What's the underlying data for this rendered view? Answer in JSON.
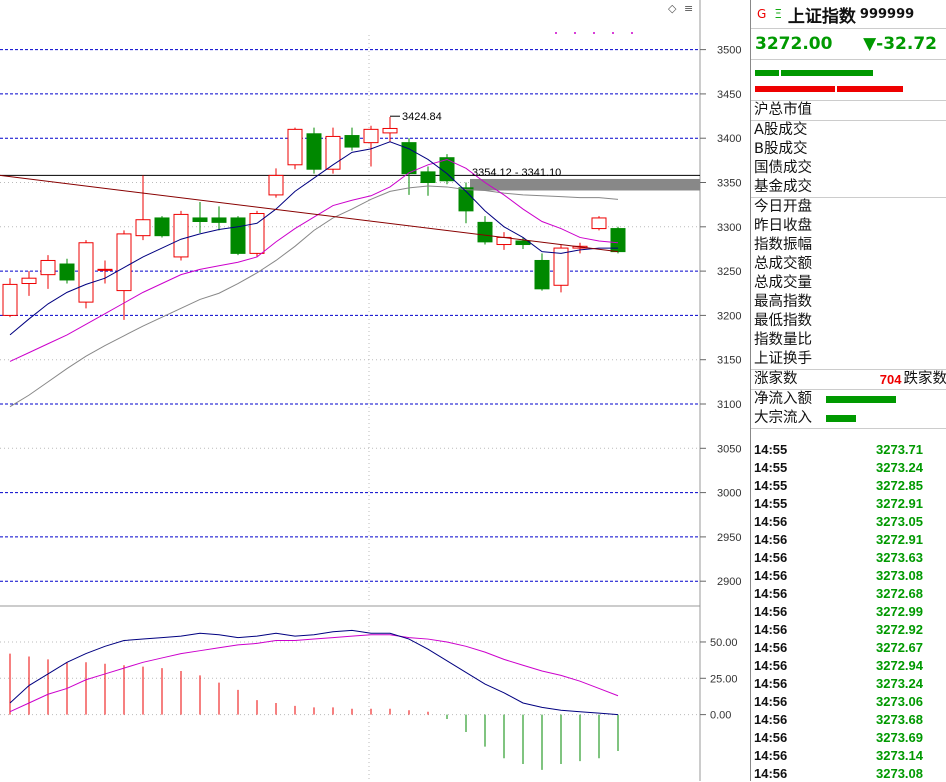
{
  "chart_data": [
    {
      "type": "candlestick",
      "yticks": [
        2900,
        2950,
        3000,
        3050,
        3100,
        3150,
        3200,
        3250,
        3300,
        3350,
        3400,
        3450,
        3500
      ],
      "ylim": [
        2872,
        3556
      ],
      "candles": [
        {
          "o": 3200,
          "c": 3235,
          "h": 3242,
          "l": 3198
        },
        {
          "o": 3236,
          "c": 3242,
          "h": 3250,
          "l": 3222
        },
        {
          "o": 3246,
          "c": 3262,
          "h": 3268,
          "l": 3230
        },
        {
          "o": 3258,
          "c": 3240,
          "h": 3264,
          "l": 3236
        },
        {
          "o": 3215,
          "c": 3282,
          "h": 3285,
          "l": 3208
        },
        {
          "o": 3252,
          "c": 3252,
          "h": 3262,
          "l": 3236
        },
        {
          "o": 3228,
          "c": 3292,
          "h": 3296,
          "l": 3195
        },
        {
          "o": 3290,
          "c": 3308,
          "h": 3358,
          "l": 3285
        },
        {
          "o": 3310,
          "c": 3290,
          "h": 3312,
          "l": 3288
        },
        {
          "o": 3266,
          "c": 3314,
          "h": 3318,
          "l": 3262
        },
        {
          "o": 3310,
          "c": 3306,
          "h": 3328,
          "l": 3293
        },
        {
          "o": 3310,
          "c": 3305,
          "h": 3323,
          "l": 3296
        },
        {
          "o": 3310,
          "c": 3270,
          "h": 3312,
          "l": 3268
        },
        {
          "o": 3270,
          "c": 3315,
          "h": 3318,
          "l": 3266
        },
        {
          "o": 3336,
          "c": 3358,
          "h": 3366,
          "l": 3333
        },
        {
          "o": 3370,
          "c": 3410,
          "h": 3412,
          "l": 3365
        },
        {
          "o": 3405,
          "c": 3365,
          "h": 3412,
          "l": 3360
        },
        {
          "o": 3365,
          "c": 3402,
          "h": 3412,
          "l": 3360
        },
        {
          "o": 3403,
          "c": 3390,
          "h": 3412,
          "l": 3386
        },
        {
          "o": 3395,
          "c": 3410,
          "h": 3414,
          "l": 3368
        },
        {
          "o": 3406,
          "c": 3411,
          "h": 3424,
          "l": 3396
        },
        {
          "o": 3395,
          "c": 3360,
          "h": 3400,
          "l": 3336
        },
        {
          "o": 3362,
          "c": 3350,
          "h": 3368,
          "l": 3335
        },
        {
          "o": 3378,
          "c": 3352,
          "h": 3382,
          "l": 3348
        },
        {
          "o": 3344,
          "c": 3318,
          "h": 3350,
          "l": 3304
        },
        {
          "o": 3305,
          "c": 3283,
          "h": 3312,
          "l": 3280
        },
        {
          "o": 3280,
          "c": 3288,
          "h": 3294,
          "l": 3274
        },
        {
          "o": 3284,
          "c": 3280,
          "h": 3288,
          "l": 3275
        },
        {
          "o": 3262,
          "c": 3230,
          "h": 3270,
          "l": 3228
        },
        {
          "o": 3234,
          "c": 3276,
          "h": 3280,
          "l": 3226
        },
        {
          "o": 3276,
          "c": 3278,
          "h": 3282,
          "l": 3270
        },
        {
          "o": 3298,
          "c": 3310,
          "h": 3312,
          "l": 3296
        },
        {
          "o": 3298,
          "c": 3272,
          "h": 3300,
          "l": 3270
        }
      ],
      "ma_short": [
        3178,
        3196,
        3213,
        3226,
        3235,
        3242,
        3254,
        3266,
        3276,
        3286,
        3292,
        3297,
        3300,
        3304,
        3320,
        3340,
        3355,
        3370,
        3384,
        3388,
        3396,
        3388,
        3376,
        3360,
        3340,
        3318,
        3300,
        3288,
        3272,
        3270,
        3274,
        3276,
        3276
      ],
      "ma_mid": [
        3148,
        3158,
        3168,
        3178,
        3190,
        3202,
        3214,
        3226,
        3236,
        3246,
        3252,
        3256,
        3260,
        3266,
        3283,
        3298,
        3311,
        3324,
        3330,
        3335,
        3345,
        3361,
        3370,
        3376,
        3366,
        3350,
        3336,
        3320,
        3306,
        3298,
        3288,
        3284,
        3282
      ],
      "ma_long": [
        3097,
        3110,
        3125,
        3140,
        3154,
        3166,
        3177,
        3188,
        3198,
        3208,
        3218,
        3225,
        3236,
        3248,
        3262,
        3278,
        3296,
        3310,
        3320,
        3331,
        3340,
        3344,
        3346,
        3345,
        3342,
        3341,
        3338,
        3336,
        3335,
        3334,
        3333,
        3333,
        3331
      ],
      "trend_line": {
        "start": 3358,
        "end": 3272
      },
      "annotations": [
        "3424.84",
        "3354.12 - 3341.10"
      ]
    },
    {
      "type": "bar",
      "yticks_labels": [
        "50.00",
        "25.00",
        "0.00"
      ],
      "yticks": [
        50,
        25,
        0
      ],
      "ylim": [
        -45,
        72
      ],
      "values": [
        42,
        40,
        38,
        36,
        36,
        35,
        34,
        33,
        32,
        30,
        27,
        22,
        17,
        10,
        8,
        6,
        5,
        5,
        4,
        4,
        4,
        3,
        2,
        -3,
        -12,
        -22,
        -30,
        -34,
        -38,
        -34,
        -32,
        -30,
        -25
      ],
      "line1": [
        8,
        20,
        28,
        36,
        42,
        47,
        51,
        52,
        53,
        54,
        56,
        55,
        53,
        54,
        56,
        54,
        55,
        57,
        58,
        56,
        56,
        52,
        45,
        37,
        29,
        21,
        15,
        8,
        5,
        3,
        2,
        1,
        0
      ],
      "line2": [
        2,
        8,
        14,
        18,
        24,
        28,
        32,
        36,
        39,
        42,
        44,
        46,
        48,
        49,
        51,
        51,
        52,
        53,
        54,
        55,
        55,
        53,
        52,
        50,
        47,
        43,
        38,
        34,
        30,
        27,
        23,
        18,
        13
      ]
    }
  ],
  "header": {
    "g": "G",
    "mi": "Ξ",
    "name": "上证指数",
    "code": "999999"
  },
  "quote": {
    "price": "3272.00",
    "change": "▼-32.72"
  },
  "section1": {
    "label": "沪总市值"
  },
  "section2": {
    "a": "A股成交",
    "b": "B股成交",
    "gz": "国债成交",
    "jj": "基金成交"
  },
  "section3": [
    "今日开盘",
    "昨日收盘",
    "指数振幅",
    "总成交额",
    "总成交量",
    "最高指数",
    "最低指数",
    "指数量比",
    "上证换手"
  ],
  "breadth": {
    "up_label": "涨家数",
    "value": "704",
    "down_label": "跌家数"
  },
  "flows": {
    "net": "净流入额",
    "block": "大宗流入"
  },
  "ticks": [
    {
      "t": "14:55",
      "p": "3273.71"
    },
    {
      "t": "14:55",
      "p": "3273.24"
    },
    {
      "t": "14:55",
      "p": "3272.85"
    },
    {
      "t": "14:55",
      "p": "3272.91"
    },
    {
      "t": "14:56",
      "p": "3273.05"
    },
    {
      "t": "14:56",
      "p": "3272.91"
    },
    {
      "t": "14:56",
      "p": "3273.63"
    },
    {
      "t": "14:56",
      "p": "3273.08"
    },
    {
      "t": "14:56",
      "p": "3272.68"
    },
    {
      "t": "14:56",
      "p": "3272.99"
    },
    {
      "t": "14:56",
      "p": "3272.92"
    },
    {
      "t": "14:56",
      "p": "3272.67"
    },
    {
      "t": "14:56",
      "p": "3272.94"
    },
    {
      "t": "14:56",
      "p": "3273.24"
    },
    {
      "t": "14:56",
      "p": "3273.06"
    },
    {
      "t": "14:56",
      "p": "3273.68"
    },
    {
      "t": "14:56",
      "p": "3273.69"
    },
    {
      "t": "14:56",
      "p": "3273.14"
    },
    {
      "t": "14:56",
      "p": "3273.08"
    }
  ]
}
